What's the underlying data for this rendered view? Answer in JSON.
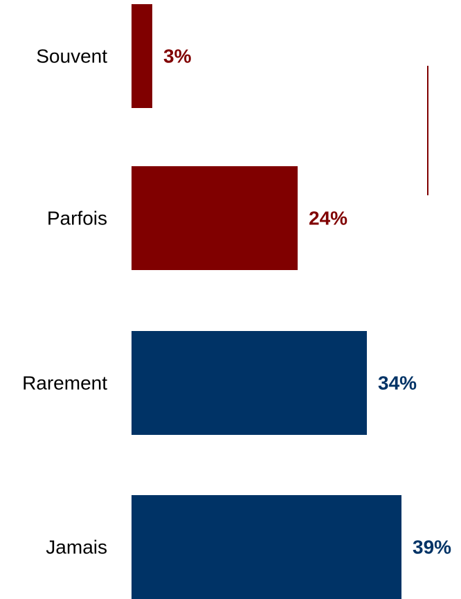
{
  "chart_data": {
    "type": "bar",
    "orientation": "horizontal",
    "categories": [
      "Souvent",
      "Parfois",
      "Rarement",
      "Jamais"
    ],
    "values": [
      3,
      24,
      34,
      39
    ],
    "value_labels": [
      "3%",
      "24%",
      "34%",
      "39%"
    ],
    "unit": "%",
    "title": "",
    "xlabel": "",
    "ylabel": "",
    "xlim": [
      0,
      45
    ],
    "grid": false,
    "legend": "none"
  },
  "colors": {
    "dark_red": "#800000",
    "navy": "#003366",
    "bar_colors": [
      "#800000",
      "#800000",
      "#003366",
      "#003366"
    ]
  }
}
